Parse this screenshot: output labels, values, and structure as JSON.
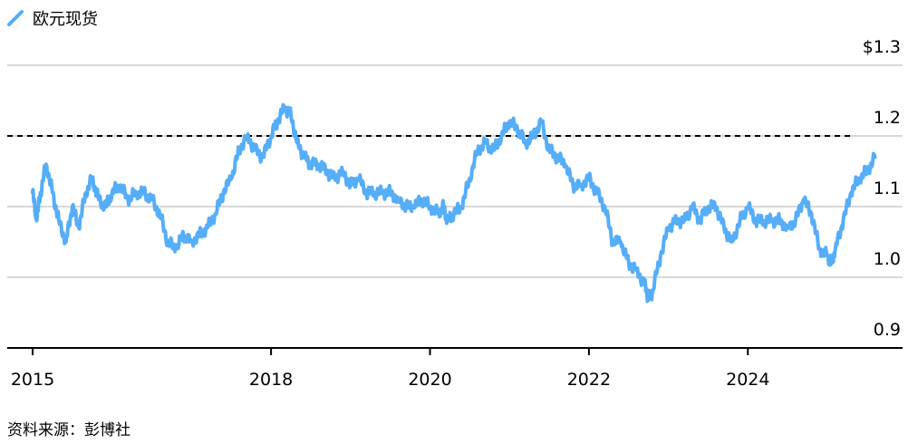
{
  "legend": {
    "label": "欧元现货",
    "color": "#56adf8"
  },
  "source": "资料来源：彭博社",
  "chart_data": {
    "type": "line",
    "title": "",
    "xlabel": "",
    "ylabel": "",
    "ylim": [
      0.9,
      1.3
    ],
    "xlim": [
      2015.0,
      2025.9
    ],
    "y_ticks": [
      {
        "value": 1.3,
        "label": "$1.3"
      },
      {
        "value": 1.2,
        "label": "1.2"
      },
      {
        "value": 1.1,
        "label": "1.1"
      },
      {
        "value": 1.0,
        "label": "1.0"
      },
      {
        "value": 0.9,
        "label": "0.9"
      }
    ],
    "x_ticks": [
      {
        "value": 2015,
        "label": "2015"
      },
      {
        "value": 2018,
        "label": "2018"
      },
      {
        "value": 2020,
        "label": "2020"
      },
      {
        "value": 2022,
        "label": "2022"
      },
      {
        "value": 2024,
        "label": "2024"
      }
    ],
    "reference_line": {
      "value": 1.2,
      "style": "dashed",
      "color": "#000000"
    },
    "grid": true,
    "series": [
      {
        "name": "欧元现货",
        "color": "#56adf8",
        "x": [
          2015.0,
          2015.05,
          2015.1,
          2015.17,
          2015.25,
          2015.33,
          2015.42,
          2015.5,
          2015.58,
          2015.67,
          2015.75,
          2015.83,
          2015.92,
          2016.0,
          2016.1,
          2016.2,
          2016.3,
          2016.4,
          2016.5,
          2016.6,
          2016.7,
          2016.8,
          2016.9,
          2017.0,
          2017.1,
          2017.2,
          2017.3,
          2017.4,
          2017.5,
          2017.6,
          2017.7,
          2017.8,
          2017.9,
          2018.0,
          2018.08,
          2018.17,
          2018.25,
          2018.33,
          2018.42,
          2018.5,
          2018.6,
          2018.7,
          2018.8,
          2018.9,
          2019.0,
          2019.1,
          2019.2,
          2019.3,
          2019.4,
          2019.5,
          2019.6,
          2019.7,
          2019.8,
          2019.9,
          2020.0,
          2020.1,
          2020.17,
          2020.22,
          2020.3,
          2020.4,
          2020.5,
          2020.6,
          2020.7,
          2020.8,
          2020.9,
          2021.0,
          2021.1,
          2021.2,
          2021.3,
          2021.4,
          2021.5,
          2021.6,
          2021.7,
          2021.8,
          2021.9,
          2022.0,
          2022.1,
          2022.2,
          2022.3,
          2022.4,
          2022.5,
          2022.6,
          2022.7,
          2022.75,
          2022.8,
          2022.9,
          2023.0,
          2023.1,
          2023.2,
          2023.3,
          2023.4,
          2023.5,
          2023.6,
          2023.7,
          2023.8,
          2023.9,
          2024.0,
          2024.1,
          2024.2,
          2024.3,
          2024.4,
          2024.5,
          2024.6,
          2024.7,
          2024.8,
          2024.9,
          2025.0,
          2025.05,
          2025.1,
          2025.2,
          2025.3,
          2025.4,
          2025.5,
          2025.6
        ],
        "values": [
          1.12,
          1.08,
          1.12,
          1.16,
          1.12,
          1.08,
          1.05,
          1.1,
          1.07,
          1.12,
          1.14,
          1.11,
          1.1,
          1.12,
          1.13,
          1.11,
          1.12,
          1.12,
          1.11,
          1.09,
          1.05,
          1.04,
          1.06,
          1.05,
          1.06,
          1.07,
          1.09,
          1.12,
          1.14,
          1.18,
          1.2,
          1.18,
          1.17,
          1.2,
          1.22,
          1.24,
          1.23,
          1.19,
          1.17,
          1.16,
          1.16,
          1.15,
          1.14,
          1.15,
          1.13,
          1.14,
          1.12,
          1.12,
          1.12,
          1.12,
          1.11,
          1.1,
          1.1,
          1.11,
          1.1,
          1.09,
          1.1,
          1.08,
          1.09,
          1.1,
          1.14,
          1.18,
          1.19,
          1.18,
          1.2,
          1.22,
          1.21,
          1.19,
          1.2,
          1.22,
          1.18,
          1.17,
          1.16,
          1.13,
          1.13,
          1.14,
          1.12,
          1.1,
          1.05,
          1.05,
          1.02,
          1.01,
          0.99,
          0.97,
          0.98,
          1.03,
          1.07,
          1.08,
          1.08,
          1.1,
          1.08,
          1.1,
          1.1,
          1.07,
          1.05,
          1.08,
          1.1,
          1.08,
          1.08,
          1.08,
          1.08,
          1.07,
          1.08,
          1.11,
          1.09,
          1.04,
          1.03,
          1.02,
          1.04,
          1.08,
          1.12,
          1.14,
          1.15,
          1.17
        ]
      }
    ]
  }
}
